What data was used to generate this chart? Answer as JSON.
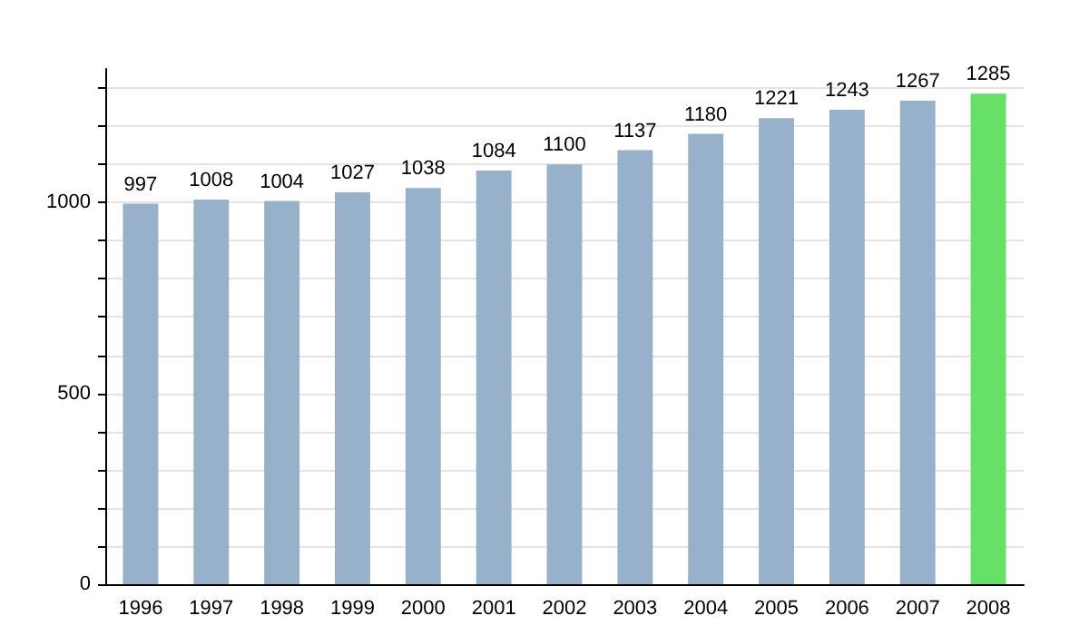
{
  "chart_data": {
    "type": "bar",
    "categories": [
      "1996",
      "1997",
      "1998",
      "1999",
      "2000",
      "2001",
      "2002",
      "2003",
      "2004",
      "2005",
      "2006",
      "2007",
      "2008"
    ],
    "values": [
      997,
      1008,
      1004,
      1027,
      1038,
      1084,
      1100,
      1137,
      1180,
      1221,
      1243,
      1267,
      1285
    ],
    "colors": [
      "#98b1cb",
      "#98b1cb",
      "#98b1cb",
      "#98b1cb",
      "#98b1cb",
      "#98b1cb",
      "#98b1cb",
      "#98b1cb",
      "#98b1cb",
      "#98b1cb",
      "#98b1cb",
      "#98b1cb",
      "#66e066"
    ],
    "ylim": [
      0,
      1350
    ],
    "yticks": [
      0,
      {
        "value": 100,
        "label": null
      },
      {
        "value": 200,
        "label": null
      },
      {
        "value": 300,
        "label": null
      },
      {
        "value": 400,
        "label": null
      },
      500,
      {
        "value": 600,
        "label": null
      },
      {
        "value": 700,
        "label": null
      },
      {
        "value": 800,
        "label": null
      },
      {
        "value": 900,
        "label": null
      },
      1000,
      {
        "value": 1100,
        "label": null
      },
      {
        "value": 1200,
        "label": null
      },
      {
        "value": 1300,
        "label": null
      }
    ],
    "grid": true,
    "data_labels": true
  }
}
